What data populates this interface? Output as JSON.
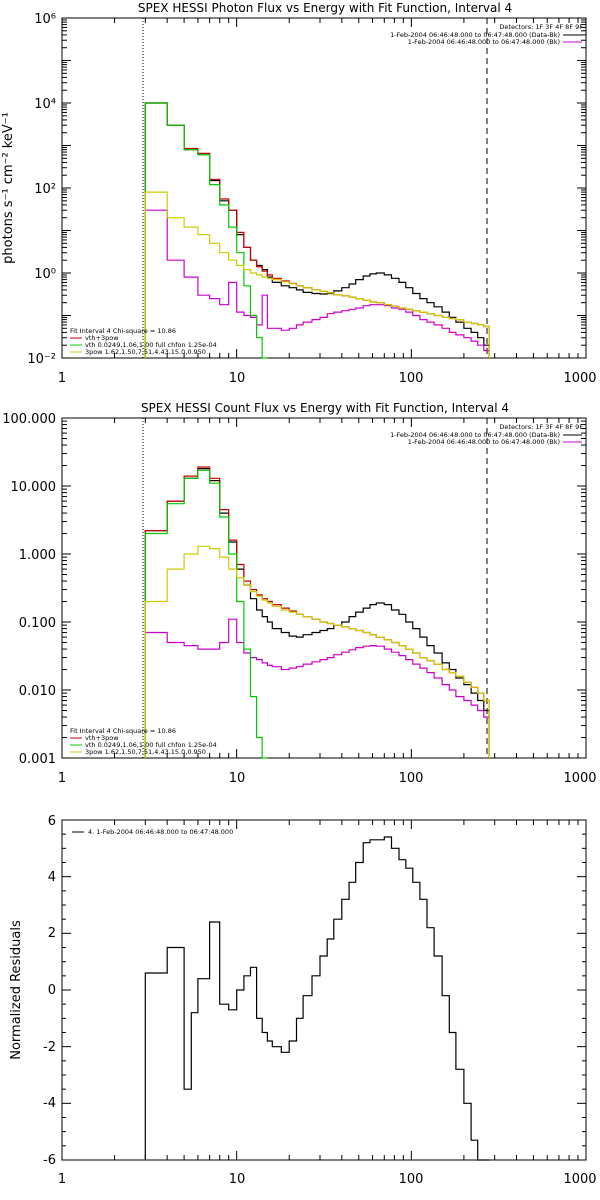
{
  "charts": [
    {
      "title": "SPEX HESSI Photon Flux vs Energy with Fit Function, Interval 4",
      "ylabel": "photons s⁻¹ cm⁻² keV⁻¹",
      "detectors": "Detectors: 1F 3F 4F 8F 9F",
      "legend": [
        {
          "label": "1-Feb-2004 06:46:48.000 to 06:47:48.000 (Data-Bk)",
          "color": "#000000"
        },
        {
          "label": "1-Feb-2004 06:46:48.000 to 06:47:48.000 (Bk)",
          "color": "#cc00cc"
        }
      ],
      "fit_text": [
        {
          "label": "Fit Interval 4   Chi-square = 10.86",
          "color": "#000000"
        },
        {
          "label": "vth+3pow",
          "color": "#cc0000"
        },
        {
          "label": "vth 0.0249,1.06,1.00  full chfon 1.25e-04",
          "color": "#00cc00"
        },
        {
          "label": "3pow 1.62,1.50,7.51,4.43,15.0,0.950",
          "color": "#cccc00"
        }
      ],
      "xticks": [
        "1",
        "10",
        "100",
        "1000"
      ],
      "yticks": [
        "10⁻²",
        "10⁰",
        "10²",
        "10⁴",
        "10⁶"
      ]
    },
    {
      "title": "SPEX HESSI Count Flux vs Energy with Fit Function, Interval 4",
      "ylabel": "",
      "detectors": "Detectors: 1F 3F 4F 8F 9F",
      "legend": [
        {
          "label": "1-Feb-2004 06:46:48.000 to 06:47:48.000 (Data-Bk)",
          "color": "#000000"
        },
        {
          "label": "1-Feb-2004 06:46:48.000 to 06:47:48.000 (Bk)",
          "color": "#cc00cc"
        }
      ],
      "fit_text": [
        {
          "label": "Fit Interval 4   Chi-square = 10.86",
          "color": "#000000"
        },
        {
          "label": "vth+3pow",
          "color": "#cc0000"
        },
        {
          "label": "vth 0.0249,1.06,1.00  full chfon 1.25e-04",
          "color": "#00cc00"
        },
        {
          "label": "3pow 1.62,1.50,7.51,4.43,15.0,0.950",
          "color": "#cccc00"
        }
      ],
      "xticks": [
        "1",
        "10",
        "100",
        "1000"
      ],
      "yticks": [
        "0.001",
        "0.010",
        "0.100",
        "1.000",
        "10.000",
        "100.000"
      ]
    },
    {
      "title": "",
      "ylabel": "Normalized Residuals",
      "legend": [
        {
          "label": "4.  1-Feb-2004 06:46:48.000 to 06:47:48.000",
          "color": "#000000"
        }
      ],
      "xticks": [
        "1",
        "10",
        "100",
        "1000"
      ],
      "yticks": [
        "-6",
        "-4",
        "-2",
        "0",
        "2",
        "4",
        "6"
      ]
    }
  ],
  "chart_data": [
    {
      "type": "line",
      "title": "SPEX HESSI Photon Flux vs Energy with Fit Function, Interval 4",
      "xlabel": "",
      "ylabel": "photons s⁻¹ cm⁻² keV⁻¹",
      "xscale": "log",
      "yscale": "log",
      "xlim": [
        1,
        1000
      ],
      "ylim": [
        0.01,
        1000000
      ],
      "grid": false,
      "legend_position": "top-right",
      "vlines": [
        {
          "x": 3.0,
          "style": "dotted"
        },
        {
          "x": 280,
          "style": "dashed"
        }
      ],
      "energy_edges": [
        3,
        4,
        5,
        6,
        7,
        8,
        9,
        10,
        11,
        12,
        13,
        14,
        15,
        16,
        18,
        20,
        22,
        24,
        27,
        30,
        33,
        36,
        40,
        44,
        48,
        53,
        58,
        63,
        70,
        77,
        85,
        93,
        102,
        112,
        123,
        135,
        150,
        165,
        180,
        200,
        220,
        240,
        260,
        280
      ],
      "series": [
        {
          "name": "Data-Bk",
          "color": "#000000",
          "values": [
            10000,
            3000,
            800,
            650,
            150,
            50,
            30,
            8,
            4,
            2,
            1.5,
            1.2,
            0.8,
            0.6,
            0.5,
            0.45,
            0.4,
            0.35,
            0.33,
            0.32,
            0.33,
            0.38,
            0.45,
            0.55,
            0.7,
            0.85,
            0.95,
            1.0,
            0.9,
            0.75,
            0.6,
            0.45,
            0.33,
            0.25,
            0.2,
            0.16,
            0.12,
            0.09,
            0.07,
            0.05,
            0.04,
            0.03,
            0.02
          ]
        },
        {
          "name": "Bk",
          "color": "#cc00cc",
          "values": [
            30,
            2,
            0.8,
            0.3,
            0.25,
            0.18,
            0.6,
            0.12,
            0.1,
            0.09,
            0.06,
            0.3,
            0.05,
            0.05,
            0.045,
            0.05,
            0.06,
            0.07,
            0.08,
            0.09,
            0.11,
            0.12,
            0.13,
            0.14,
            0.15,
            0.17,
            0.18,
            0.18,
            0.17,
            0.15,
            0.14,
            0.12,
            0.1,
            0.08,
            0.07,
            0.06,
            0.05,
            0.04,
            0.035,
            0.03,
            0.025,
            0.02,
            0.015
          ]
        },
        {
          "name": "vth+3pow",
          "color": "#cc0000",
          "values": [
            10000,
            3000,
            850,
            650,
            160,
            55,
            30,
            9,
            4,
            2,
            1.4,
            1.1,
            0.9,
            0.75,
            0.65,
            0.57,
            0.5,
            0.45,
            0.4,
            0.37,
            0.34,
            0.31,
            0.29,
            0.27,
            0.25,
            0.23,
            0.21,
            0.2,
            0.18,
            0.165,
            0.15,
            0.14,
            0.13,
            0.12,
            0.11,
            0.1,
            0.09,
            0.085,
            0.08,
            0.07,
            0.065,
            0.06,
            0.055
          ]
        },
        {
          "name": "vth",
          "color": "#00cc00",
          "values": [
            10000,
            3000,
            800,
            600,
            120,
            40,
            12,
            3,
            0.5,
            0.1,
            0.03,
            0.01
          ]
        },
        {
          "name": "3pow",
          "color": "#cccc00",
          "values": [
            80,
            20,
            12,
            8,
            5,
            3,
            2,
            1.5,
            1.2,
            1.0,
            0.9,
            0.8,
            0.75,
            0.7,
            0.62,
            0.56,
            0.5,
            0.45,
            0.4,
            0.37,
            0.34,
            0.31,
            0.29,
            0.27,
            0.25,
            0.23,
            0.21,
            0.2,
            0.18,
            0.165,
            0.15,
            0.14,
            0.13,
            0.12,
            0.11,
            0.1,
            0.09,
            0.085,
            0.08,
            0.07,
            0.065,
            0.06,
            0.055
          ]
        }
      ]
    },
    {
      "type": "line",
      "title": "SPEX HESSI Count Flux vs Energy with Fit Function, Interval 4",
      "xlabel": "",
      "ylabel": "",
      "xscale": "log",
      "yscale": "log",
      "xlim": [
        1,
        1000
      ],
      "ylim": [
        0.001,
        100
      ],
      "grid": false,
      "legend_position": "top-right",
      "vlines": [
        {
          "x": 3.0,
          "style": "dotted"
        },
        {
          "x": 280,
          "style": "dashed"
        }
      ],
      "energy_edges": [
        3,
        4,
        5,
        6,
        7,
        8,
        9,
        10,
        11,
        12,
        13,
        14,
        15,
        16,
        18,
        20,
        22,
        24,
        27,
        30,
        33,
        36,
        40,
        44,
        48,
        53,
        58,
        63,
        70,
        77,
        85,
        93,
        102,
        112,
        123,
        135,
        150,
        165,
        180,
        200,
        220,
        240,
        260,
        280
      ],
      "series": [
        {
          "name": "Data-Bk",
          "color": "#000000",
          "values": [
            2.2,
            6,
            13,
            18,
            12,
            4,
            1.5,
            0.6,
            0.35,
            0.22,
            0.15,
            0.12,
            0.1,
            0.08,
            0.07,
            0.062,
            0.06,
            0.065,
            0.07,
            0.075,
            0.08,
            0.09,
            0.1,
            0.12,
            0.14,
            0.16,
            0.18,
            0.19,
            0.18,
            0.15,
            0.13,
            0.1,
            0.08,
            0.06,
            0.045,
            0.035,
            0.025,
            0.02,
            0.015,
            0.012,
            0.009,
            0.007,
            0.005
          ]
        },
        {
          "name": "Bk",
          "color": "#cc00cc",
          "values": [
            0.07,
            0.05,
            0.045,
            0.04,
            0.04,
            0.05,
            0.11,
            0.05,
            0.035,
            0.03,
            0.028,
            0.025,
            0.023,
            0.022,
            0.02,
            0.021,
            0.022,
            0.024,
            0.026,
            0.028,
            0.03,
            0.033,
            0.036,
            0.039,
            0.042,
            0.044,
            0.045,
            0.044,
            0.04,
            0.036,
            0.032,
            0.028,
            0.024,
            0.021,
            0.018,
            0.015,
            0.012,
            0.01,
            0.008,
            0.007,
            0.006,
            0.005,
            0.004
          ]
        },
        {
          "name": "vth+3pow",
          "color": "#cc0000",
          "values": [
            2.2,
            6,
            14,
            19,
            13,
            4.5,
            1.6,
            0.7,
            0.4,
            0.3,
            0.25,
            0.22,
            0.2,
            0.18,
            0.16,
            0.145,
            0.13,
            0.12,
            0.11,
            0.1,
            0.095,
            0.09,
            0.085,
            0.08,
            0.075,
            0.07,
            0.065,
            0.06,
            0.055,
            0.05,
            0.045,
            0.04,
            0.035,
            0.03,
            0.027,
            0.024,
            0.02,
            0.018,
            0.016,
            0.013,
            0.011,
            0.009,
            0.007
          ]
        },
        {
          "name": "vth",
          "color": "#00cc00",
          "values": [
            2,
            5.5,
            13,
            17,
            11,
            3.5,
            1,
            0.2,
            0.04,
            0.008,
            0.002,
            0.001
          ]
        },
        {
          "name": "3pow",
          "color": "#cccc00",
          "values": [
            0.2,
            0.6,
            1.0,
            1.3,
            1.2,
            0.9,
            0.6,
            0.45,
            0.35,
            0.28,
            0.24,
            0.21,
            0.19,
            0.17,
            0.15,
            0.14,
            0.13,
            0.12,
            0.11,
            0.1,
            0.095,
            0.09,
            0.085,
            0.08,
            0.075,
            0.07,
            0.065,
            0.06,
            0.055,
            0.05,
            0.045,
            0.04,
            0.035,
            0.03,
            0.027,
            0.024,
            0.02,
            0.018,
            0.016,
            0.013,
            0.011,
            0.009,
            0.007
          ]
        }
      ]
    },
    {
      "type": "line",
      "title": "",
      "xlabel": "",
      "ylabel": "Normalized Residuals",
      "xscale": "log",
      "yscale": "linear",
      "xlim": [
        1,
        1000
      ],
      "ylim": [
        -6,
        6
      ],
      "grid": false,
      "legend_position": "top-left",
      "energy_edges": [
        3,
        4,
        5,
        5.5,
        6,
        7,
        8,
        9,
        10,
        11,
        12,
        13,
        14,
        15,
        16,
        18,
        20,
        22,
        24,
        27,
        30,
        33,
        36,
        40,
        44,
        48,
        53,
        58,
        63,
        70,
        77,
        85,
        93,
        102,
        112,
        123,
        135,
        150,
        165,
        180,
        200,
        220,
        240,
        260,
        280
      ],
      "series": [
        {
          "name": "4.  1-Feb-2004 06:46:48.000 to 06:47:48.000",
          "color": "#000000",
          "values": [
            0.6,
            1.5,
            -3.5,
            -0.8,
            0.4,
            2.4,
            -0.5,
            -0.7,
            0.0,
            0.5,
            0.8,
            -1.0,
            -1.5,
            -1.8,
            -2.0,
            -2.2,
            -1.8,
            -1.0,
            -0.2,
            0.5,
            1.2,
            1.8,
            2.5,
            3.2,
            3.8,
            4.5,
            5.2,
            5.3,
            5.3,
            5.4,
            5.0,
            4.6,
            4.3,
            3.8,
            3.2,
            2.2,
            1.2,
            -0.2,
            -1.5,
            -2.8,
            -4.0,
            -5.3,
            -6.0,
            -6.0
          ]
        }
      ]
    }
  ]
}
